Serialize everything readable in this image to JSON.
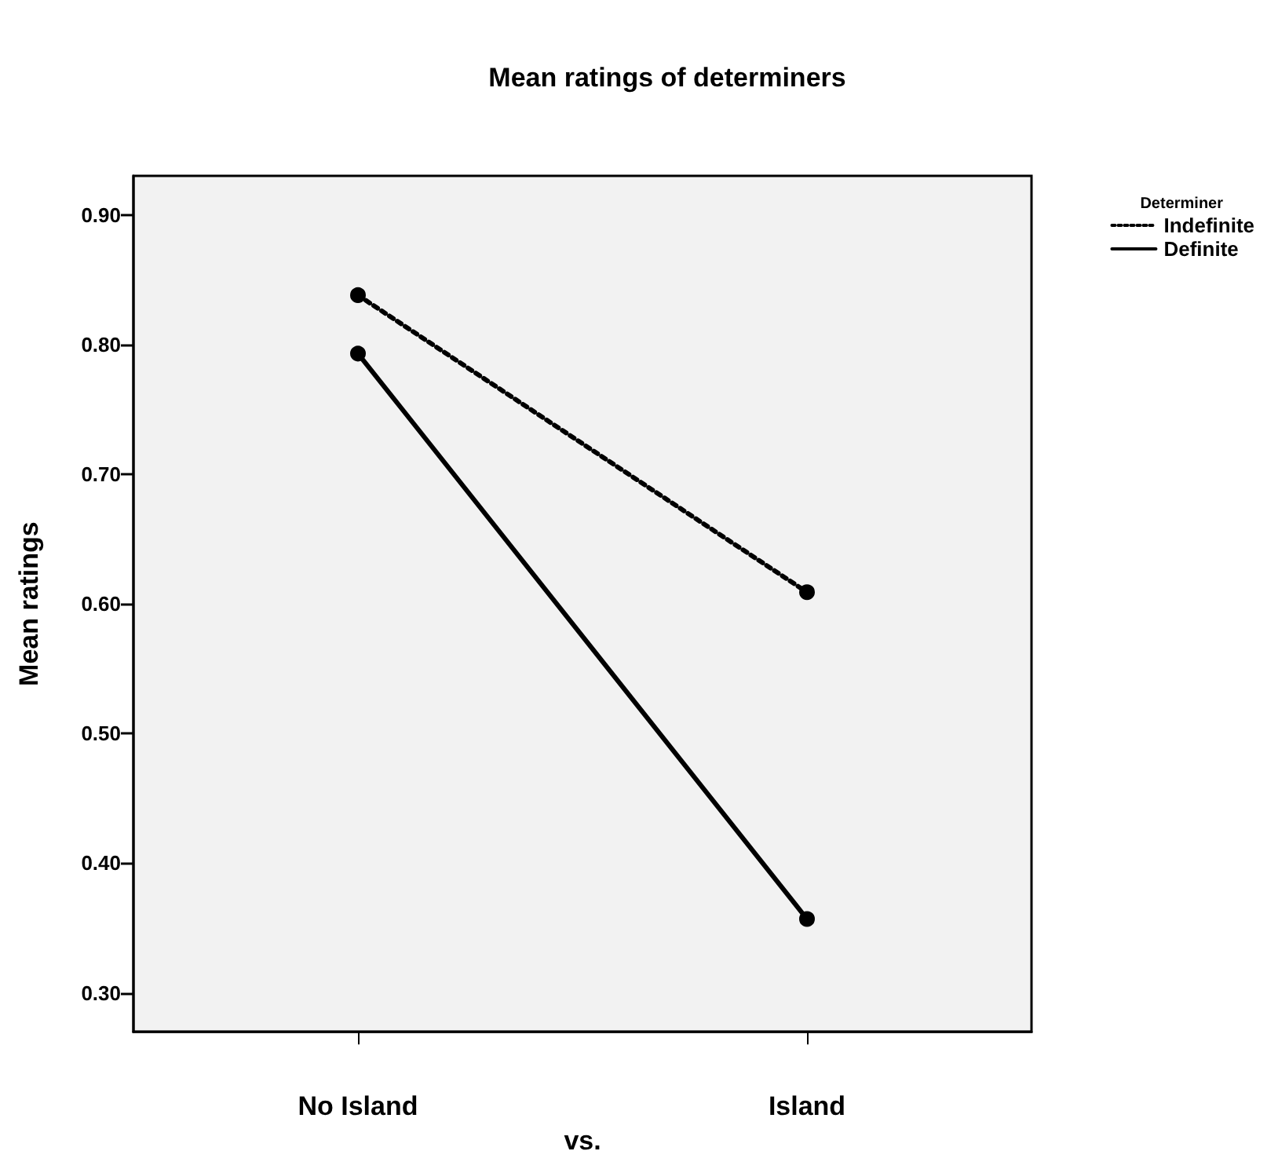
{
  "chart_data": {
    "type": "line",
    "title": "Mean ratings of determiners",
    "xlabel": "vs.",
    "ylabel": "Mean ratings",
    "legend_title": "Determiner",
    "categories": [
      "No Island",
      "Island"
    ],
    "series": [
      {
        "name": "Indefinite",
        "color": "#000000",
        "values": [
          0.838,
          0.609
        ],
        "line_style": "dotted"
      },
      {
        "name": "Definite",
        "color": "#000000",
        "values": [
          0.793,
          0.357
        ],
        "line_style": "solid"
      }
    ],
    "ylim": [
      0.27,
      0.93
    ],
    "yticks": [
      {
        "value": 0.9,
        "label": "0.90"
      },
      {
        "value": 0.8,
        "label": "0.80"
      },
      {
        "value": 0.7,
        "label": "0.70"
      },
      {
        "value": 0.6,
        "label": "0.60"
      },
      {
        "value": 0.5,
        "label": "0.50"
      },
      {
        "value": 0.4,
        "label": "0.40"
      },
      {
        "value": 0.3,
        "label": "0.30"
      }
    ],
    "grid": false,
    "legend": "top right",
    "marker": "circle"
  }
}
